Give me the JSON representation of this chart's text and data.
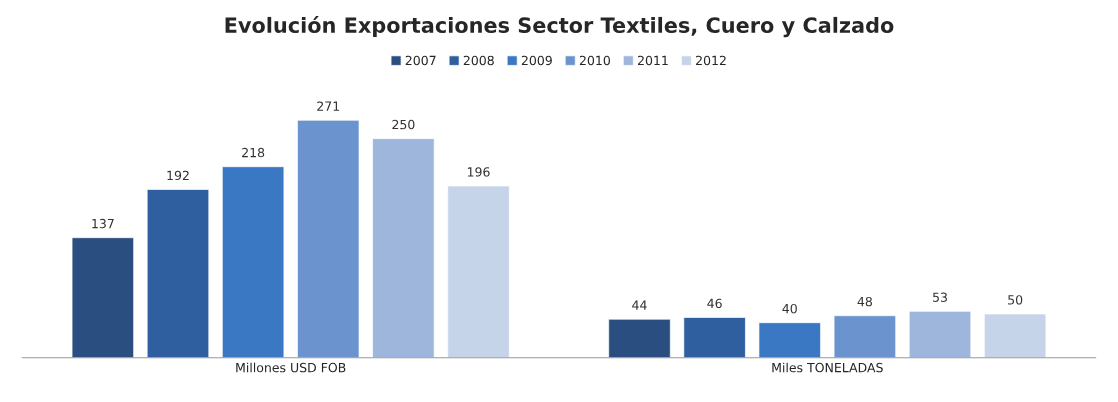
{
  "chart_data": {
    "type": "bar",
    "title": "Evolución Exportaciones Sector Textiles, Cuero y Calzado",
    "categories": [
      "Millones USD FOB",
      "Miles TONELADAS"
    ],
    "series": [
      {
        "name": "2007",
        "color": "#2b4e80",
        "values": [
          137,
          44
        ]
      },
      {
        "name": "2008",
        "color": "#305f9f",
        "values": [
          192,
          46
        ]
      },
      {
        "name": "2009",
        "color": "#3b78c3",
        "values": [
          218,
          40
        ]
      },
      {
        "name": "2010",
        "color": "#6b94cf",
        "values": [
          271,
          48
        ]
      },
      {
        "name": "2011",
        "color": "#9eb5dc",
        "values": [
          250,
          53
        ]
      },
      {
        "name": "2012",
        "color": "#c6d4ea",
        "values": [
          196,
          50
        ]
      }
    ],
    "data_labels": true,
    "legend": "top",
    "grid": false,
    "tick_labels": "x"
  }
}
